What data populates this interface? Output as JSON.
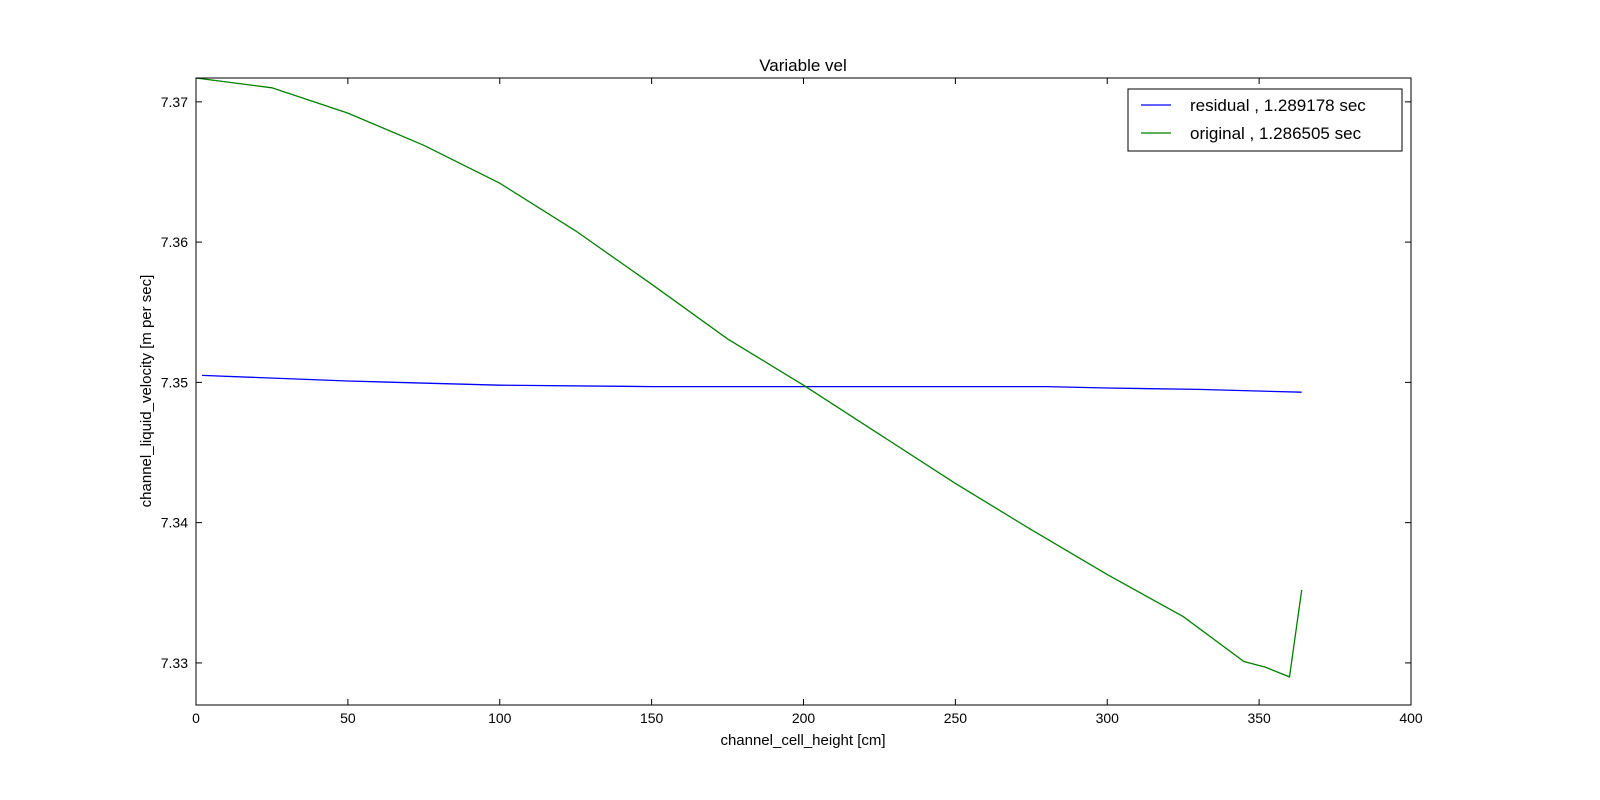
{
  "chart_data": {
    "type": "line",
    "title": "Variable vel",
    "xlabel": "channel_cell_height [cm]",
    "ylabel": "channel_liquid_velocity [m per sec]",
    "xlim": [
      0,
      400
    ],
    "ylim": [
      7.327,
      7.3717
    ],
    "xticks": [
      0,
      50,
      100,
      150,
      200,
      250,
      300,
      350,
      400
    ],
    "xtick_labels": [
      "0",
      "50",
      "100",
      "150",
      "200",
      "250",
      "300",
      "350",
      "400"
    ],
    "yticks": [
      7.33,
      7.34,
      7.35,
      7.36,
      7.37
    ],
    "ytick_labels": [
      "7.33",
      "7.34",
      "7.35",
      "7.36",
      "7.37"
    ],
    "grid": false,
    "legend_position": "top-right",
    "series": [
      {
        "name": "residual , 1.289178 sec",
        "color": "#0000ff",
        "x": [
          2,
          50,
          100,
          150,
          200,
          250,
          280,
          300,
          330,
          364
        ],
        "y": [
          7.3505,
          7.3501,
          7.3498,
          7.3497,
          7.3497,
          7.3497,
          7.3497,
          7.3496,
          7.3495,
          7.3493
        ]
      },
      {
        "name": "original , 1.286505 sec",
        "color": "#008000",
        "x": [
          0,
          25,
          50,
          75,
          100,
          125,
          150,
          175,
          200,
          225,
          250,
          275,
          300,
          325,
          345,
          352,
          360,
          364
        ],
        "y": [
          7.3717,
          7.371,
          7.3692,
          7.3669,
          7.3642,
          7.3608,
          7.357,
          7.3531,
          7.3498,
          7.3463,
          7.3428,
          7.3395,
          7.3363,
          7.3333,
          7.3301,
          7.3297,
          7.329,
          7.3352
        ]
      }
    ]
  }
}
